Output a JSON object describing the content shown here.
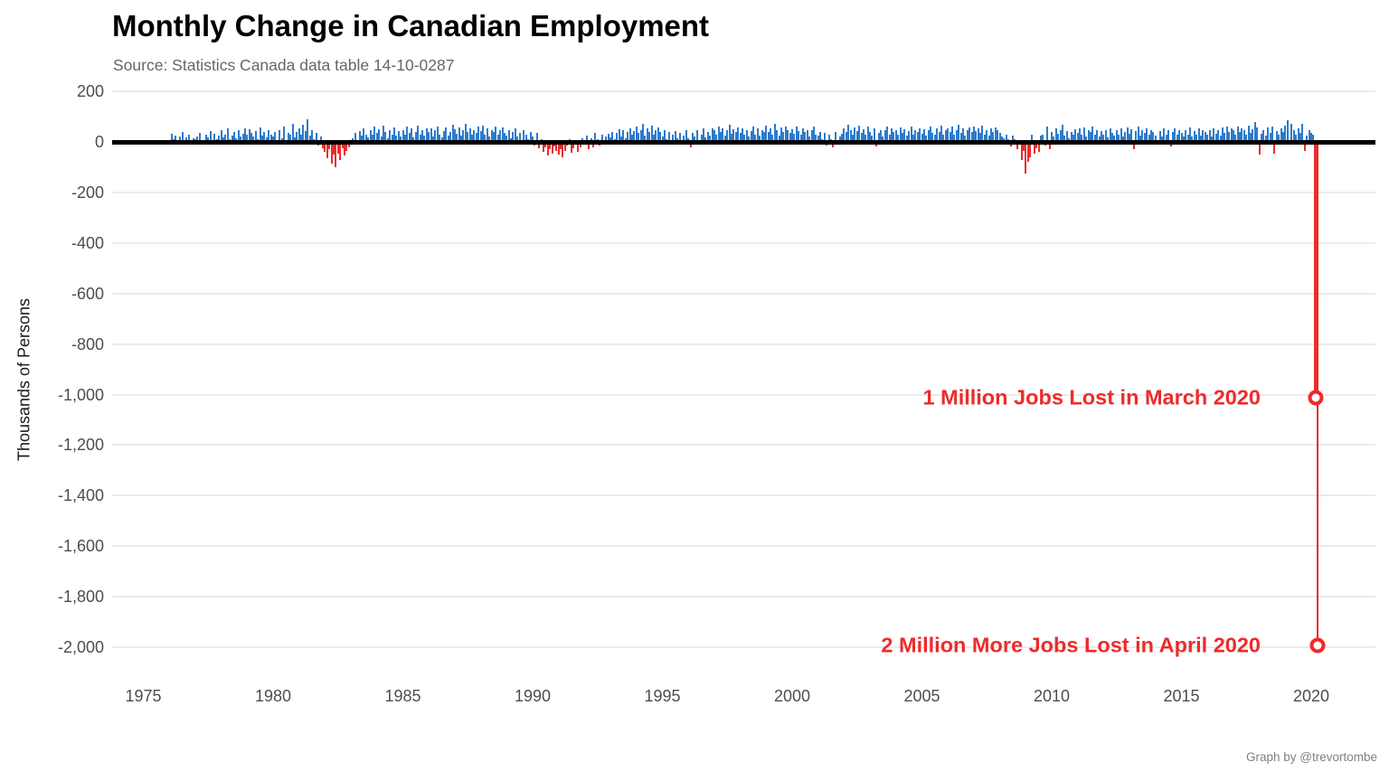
{
  "header": {
    "title": "Monthly Change in Canadian Employment",
    "subtitle": "Source: Statistics Canada data table 14-10-0287"
  },
  "footer": {
    "credit": "Graph by @trevortombe"
  },
  "colors": {
    "positive_bar": "#2B7BCE",
    "negative_bar": "#ED2B2B",
    "annotation": "#ED2B2B",
    "zero_line": "#000000",
    "gridline": "#EBEBEB",
    "tick_label": "#4D4D4D",
    "subtitle": "#666666",
    "credit": "#808080"
  },
  "chart_data": {
    "type": "bar",
    "title": "Monthly Change in Canadian Employment",
    "subtitle": "Source: Statistics Canada data table 14-10-0287",
    "xlabel": "",
    "ylabel": "Thousands of Persons",
    "ylim": [
      -2050,
      250
    ],
    "xlim": [
      1973.8,
      2022.5
    ],
    "grid": "horizontal",
    "legend": "none",
    "y_ticks": [
      {
        "label": "200",
        "value": 200
      },
      {
        "label": "0",
        "value": 0
      },
      {
        "label": "-200",
        "value": -200
      },
      {
        "label": "-400",
        "value": -400
      },
      {
        "label": "-600",
        "value": -600
      },
      {
        "label": "-800",
        "value": -800
      },
      {
        "label": "-1,000",
        "value": -1000
      },
      {
        "label": "-1,200",
        "value": -1200
      },
      {
        "label": "-1,400",
        "value": -1400
      },
      {
        "label": "-1,600",
        "value": -1600
      },
      {
        "label": "-1,800",
        "value": -1800
      },
      {
        "label": "-2,000",
        "value": -2000
      }
    ],
    "x_ticks": [
      {
        "label": "1975",
        "value": 1975
      },
      {
        "label": "1980",
        "value": 1980
      },
      {
        "label": "1985",
        "value": 1985
      },
      {
        "label": "1990",
        "value": 1990
      },
      {
        "label": "1995",
        "value": 1995
      },
      {
        "label": "2000",
        "value": 2000
      },
      {
        "label": "2005",
        "value": 2005
      },
      {
        "label": "2010",
        "value": 2010
      },
      {
        "label": "2015",
        "value": 2015
      },
      {
        "label": "2020",
        "value": 2020
      }
    ],
    "series_name": "Monthly employment change (thousands of persons, estimated from pixels)",
    "series_by_year": [
      {
        "year": 1976,
        "start_month": 2,
        "values": [
          33,
          12,
          25,
          -8,
          21,
          40,
          6,
          18,
          28,
          -4,
          15
        ]
      },
      {
        "year": 1977,
        "values": [
          10,
          22,
          35,
          8,
          -6,
          27,
          19,
          42,
          5,
          31,
          12,
          24
        ]
      },
      {
        "year": 1978,
        "values": [
          45,
          18,
          30,
          52,
          9,
          26,
          38,
          14,
          47,
          22,
          33,
          55
        ]
      },
      {
        "year": 1979,
        "values": [
          28,
          50,
          36,
          20,
          44,
          12,
          58,
          25,
          39,
          17,
          48,
          30
        ]
      },
      {
        "year": 1980,
        "values": [
          22,
          38,
          -10,
          45,
          15,
          60,
          8,
          35,
          27,
          72,
          18,
          40
        ]
      },
      {
        "year": 1981,
        "values": [
          55,
          30,
          68,
          42,
          90,
          25,
          48,
          12,
          35,
          -15,
          20,
          -25
        ]
      },
      {
        "year": 1982,
        "values": [
          -40,
          -65,
          -30,
          -85,
          -50,
          -100,
          -45,
          -70,
          -25,
          -55,
          -35,
          -20
        ]
      },
      {
        "year": 1983,
        "values": [
          -10,
          15,
          35,
          8,
          42,
          25,
          55,
          30,
          18,
          45,
          28,
          60
        ]
      },
      {
        "year": 1984,
        "values": [
          35,
          50,
          22,
          65,
          40,
          15,
          48,
          30,
          58,
          25,
          42,
          20
        ]
      },
      {
        "year": 1985,
        "values": [
          45,
          28,
          60,
          35,
          52,
          18,
          40,
          65,
          30,
          48,
          25,
          55
        ]
      },
      {
        "year": 1986,
        "values": [
          38,
          55,
          20,
          45,
          62,
          30,
          18,
          42,
          58,
          25,
          40,
          68
        ]
      },
      {
        "year": 1987,
        "values": [
          50,
          32,
          58,
          25,
          45,
          70,
          38,
          55,
          28,
          48,
          35,
          60
        ]
      },
      {
        "year": 1988,
        "values": [
          42,
          65,
          30,
          55,
          22,
          48,
          38,
          62,
          28,
          45,
          58,
          35
        ]
      },
      {
        "year": 1989,
        "values": [
          25,
          48,
          15,
          40,
          55,
          20,
          35,
          -12,
          45,
          28,
          10,
          38
        ]
      },
      {
        "year": 1990,
        "values": [
          20,
          -15,
          35,
          -25,
          10,
          -40,
          -20,
          -55,
          -30,
          -45,
          -18,
          -35
        ]
      },
      {
        "year": 1991,
        "values": [
          -50,
          -28,
          -62,
          -35,
          -15,
          12,
          -42,
          -25,
          8,
          -38,
          -20,
          15
        ]
      },
      {
        "year": 1992,
        "values": [
          -10,
          25,
          -30,
          15,
          -20,
          35,
          10,
          -15,
          28,
          -8,
          20,
          32
        ]
      },
      {
        "year": 1993,
        "values": [
          18,
          40,
          12,
          35,
          50,
          22,
          45,
          15,
          38,
          55,
          28,
          42
        ]
      },
      {
        "year": 1994,
        "values": [
          60,
          35,
          48,
          70,
          25,
          52,
          38,
          65,
          30,
          45,
          58,
          40
        ]
      },
      {
        "year": 1995,
        "values": [
          22,
          45,
          10,
          38,
          -12,
          28,
          42,
          15,
          35,
          -8,
          25,
          48
        ]
      },
      {
        "year": 1996,
        "values": [
          15,
          -20,
          35,
          20,
          45,
          -10,
          30,
          52,
          18,
          40,
          25,
          55
        ]
      },
      {
        "year": 1997,
        "values": [
          48,
          30,
          62,
          38,
          55,
          25,
          45,
          68,
          32,
          50,
          40,
          58
        ]
      },
      {
        "year": 1998,
        "values": [
          35,
          55,
          28,
          48,
          20,
          42,
          60,
          30,
          52,
          25,
          45,
          38
        ]
      },
      {
        "year": 1999,
        "values": [
          65,
          40,
          55,
          30,
          70,
          45,
          25,
          58,
          38,
          62,
          48,
          35
        ]
      },
      {
        "year": 2000,
        "values": [
          50,
          32,
          60,
          42,
          28,
          55,
          38,
          48,
          22,
          45,
          62,
          30
        ]
      },
      {
        "year": 2001,
        "values": [
          25,
          40,
          12,
          35,
          -15,
          28,
          10,
          -22,
          38,
          -10,
          20,
          32
        ]
      },
      {
        "year": 2002,
        "values": [
          55,
          38,
          68,
          45,
          30,
          58,
          42,
          65,
          35,
          50,
          28,
          60
        ]
      },
      {
        "year": 2003,
        "values": [
          40,
          25,
          52,
          -18,
          35,
          48,
          22,
          45,
          60,
          30,
          55,
          38
        ]
      },
      {
        "year": 2004,
        "values": [
          48,
          30,
          58,
          35,
          50,
          25,
          42,
          62,
          28,
          45,
          38,
          55
        ]
      },
      {
        "year": 2005,
        "values": [
          32,
          50,
          25,
          45,
          60,
          35,
          28,
          52,
          40,
          65,
          30,
          48
        ]
      },
      {
        "year": 2006,
        "values": [
          55,
          38,
          62,
          30,
          48,
          68,
          35,
          52,
          25,
          45,
          58,
          40
        ]
      },
      {
        "year": 2007,
        "values": [
          60,
          42,
          55,
          35,
          65,
          30,
          48,
          25,
          52,
          38,
          58,
          45
        ]
      },
      {
        "year": 2008,
        "values": [
          35,
          20,
          15,
          28,
          10,
          -18,
          25,
          12,
          -30,
          8,
          -70,
          -35
        ]
      },
      {
        "year": 2009,
        "values": [
          -125,
          -80,
          -60,
          30,
          -45,
          -25,
          -40,
          25,
          28,
          -15,
          60,
          -28
        ]
      },
      {
        "year": 2010,
        "values": [
          40,
          20,
          55,
          32,
          48,
          68,
          25,
          42,
          15,
          38,
          28,
          50
        ]
      },
      {
        "year": 2011,
        "values": [
          35,
          52,
          28,
          58,
          22,
          45,
          38,
          60,
          30,
          48,
          20,
          42
        ]
      },
      {
        "year": 2012,
        "values": [
          28,
          45,
          18,
          55,
          35,
          25,
          48,
          30,
          52,
          22,
          40,
          58
        ]
      },
      {
        "year": 2013,
        "values": [
          32,
          50,
          -28,
          42,
          60,
          25,
          45,
          35,
          55,
          28,
          48,
          38
        ]
      },
      {
        "year": 2014,
        "values": [
          25,
          -10,
          42,
          20,
          55,
          30,
          45,
          -18,
          38,
          52,
          28,
          48
        ]
      },
      {
        "year": 2015,
        "values": [
          35,
          22,
          48,
          28,
          58,
          20,
          42,
          30,
          55,
          25,
          45,
          38
        ]
      },
      {
        "year": 2016,
        "values": [
          28,
          45,
          20,
          52,
          32,
          48,
          25,
          58,
          35,
          62,
          40,
          55
        ]
      },
      {
        "year": 2017,
        "values": [
          48,
          30,
          62,
          38,
          55,
          45,
          28,
          65,
          35,
          50,
          80,
          58
        ]
      },
      {
        "year": 2018,
        "values": [
          -50,
          32,
          48,
          25,
          58,
          35,
          60,
          -45,
          42,
          28,
          55,
          40
        ]
      },
      {
        "year": 2019,
        "values": [
          65,
          85,
          -12,
          70,
          45,
          28,
          55,
          35,
          70,
          -35,
          25,
          48
        ]
      },
      {
        "year": 2020,
        "values": [
          35,
          30,
          -1011,
          -1994
        ]
      }
    ],
    "annotations": [
      {
        "text": "1 Million Jobs Lost in March 2020",
        "year": 2020,
        "month": 3,
        "value": -1011
      },
      {
        "text": "2 Million More Jobs Lost in April 2020",
        "year": 2020,
        "month": 4,
        "value": -1994
      }
    ]
  }
}
